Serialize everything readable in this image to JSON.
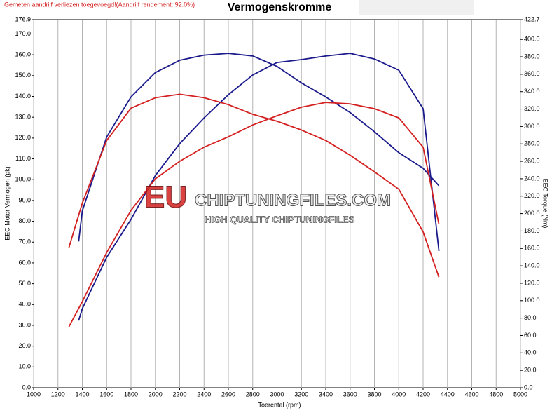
{
  "note": "Gemeten aandrijf verliezen toegevoegd!(Aandrijf rendement: 92.0%)",
  "chart_data": {
    "type": "line",
    "title": "Vermogenskromme",
    "xlabel": "Toerental (rpm)",
    "ylabel": "EEC Motor Vermogen (pk)",
    "y2label": "EEC Torque (Nm)",
    "watermark": [
      "EU",
      "CHIPTUNINGFILES.COM",
      "HIGH QUALITY CHIPTUNINGFILES"
    ],
    "grid": "x",
    "xlim": [
      1000,
      5000
    ],
    "xticks": [
      1000,
      1200,
      1400,
      1600,
      1800,
      2000,
      2200,
      2400,
      2600,
      2800,
      3000,
      3200,
      3400,
      3600,
      3800,
      4000,
      4200,
      4400,
      4600,
      4800,
      5000
    ],
    "ylim": [
      0,
      176.9
    ],
    "yticks": [
      {
        "value": 0,
        "label": "0.0"
      },
      {
        "value": 10,
        "label": "10.0"
      },
      {
        "value": 20,
        "label": "20.0"
      },
      {
        "value": 30,
        "label": "30.0"
      },
      {
        "value": 40,
        "label": "40.0"
      },
      {
        "value": 50,
        "label": "50.0"
      },
      {
        "value": 60,
        "label": "60.0"
      },
      {
        "value": 70,
        "label": "70.0"
      },
      {
        "value": 80,
        "label": "80.0"
      },
      {
        "value": 90,
        "label": "90.0"
      },
      {
        "value": 100,
        "label": "100.0"
      },
      {
        "value": 110,
        "label": "110.0"
      },
      {
        "value": 120,
        "label": "120.0"
      },
      {
        "value": 130,
        "label": "130.0"
      },
      {
        "value": 140,
        "label": "140.0"
      },
      {
        "value": 150,
        "label": "150.0"
      },
      {
        "value": 160,
        "label": "160.0"
      },
      {
        "value": 170,
        "label": "170.0"
      },
      176.9
    ],
    "y2lim": [
      0,
      422.7
    ],
    "y2ticks": [
      {
        "value": 0,
        "label": "0.0"
      },
      {
        "value": 20,
        "label": "20.0"
      },
      {
        "value": 40,
        "label": "40.0"
      },
      {
        "value": 60,
        "label": "60.0"
      },
      {
        "value": 80,
        "label": "80.0"
      },
      {
        "value": 100,
        "label": "100.0"
      },
      {
        "value": 120,
        "label": "120.0"
      },
      {
        "value": 140,
        "label": "140.0"
      },
      {
        "value": 160,
        "label": "160.0"
      },
      {
        "value": 180,
        "label": "180.0"
      },
      {
        "value": 200,
        "label": "200.0"
      },
      {
        "value": 220,
        "label": "220.0"
      },
      {
        "value": 240,
        "label": "240.0"
      },
      {
        "value": 260,
        "label": "260.0"
      },
      {
        "value": 280,
        "label": "280.0"
      },
      {
        "value": 300,
        "label": "300.0"
      },
      {
        "value": 320,
        "label": "320.0"
      },
      {
        "value": 340,
        "label": "340.0"
      },
      {
        "value": 360,
        "label": "360.0"
      },
      {
        "value": 380,
        "label": "380.0"
      },
      {
        "value": 400,
        "label": "400.0"
      },
      422.7
    ],
    "series": [
      {
        "color": "#1a1a8c",
        "axis": "y2",
        "x": [
          1370,
          1400,
          1600,
          1800,
          2000,
          2200,
          2400,
          2600,
          2800,
          3000,
          3200,
          3400,
          3600,
          3800,
          4000,
          4200,
          4330
        ],
        "values": [
          168,
          203,
          288,
          334,
          362,
          376,
          382,
          384,
          381,
          369,
          350,
          334,
          316,
          294,
          270,
          252,
          232
        ]
      },
      {
        "color": "#1a1a8c",
        "x": [
          1370,
          1400,
          1600,
          1800,
          2000,
          2200,
          2400,
          2600,
          2800,
          3000,
          3200,
          3400,
          3600,
          3800,
          4000,
          4200,
          4330
        ],
        "values": [
          32.3,
          38,
          62.7,
          80.9,
          102,
          117.3,
          129.7,
          140.8,
          150.3,
          156.3,
          157.7,
          159.4,
          160.7,
          158,
          152.6,
          134.1,
          65.7
        ]
      },
      {
        "color": "#d42020",
        "axis": "y2",
        "x": [
          1290,
          1400,
          1600,
          1800,
          2000,
          2200,
          2400,
          2600,
          2800,
          3000,
          3200,
          3400,
          3600,
          3800,
          4000,
          4200,
          4330
        ],
        "values": [
          161,
          212,
          284,
          321,
          333,
          337,
          333,
          325,
          314,
          306,
          296,
          284,
          267,
          248,
          228,
          179,
          127
        ]
      },
      {
        "color": "#d42020",
        "x": [
          1290,
          1400,
          1600,
          1800,
          2000,
          2200,
          2400,
          2600,
          2800,
          3000,
          3200,
          3400,
          3600,
          3800,
          4000,
          4200,
          4330
        ],
        "values": [
          29.3,
          41.4,
          65,
          85.2,
          100.4,
          108.8,
          115.6,
          120.6,
          126.3,
          130.7,
          134.8,
          137.1,
          136.4,
          134.1,
          129.7,
          115.6,
          78.5
        ]
      }
    ]
  }
}
